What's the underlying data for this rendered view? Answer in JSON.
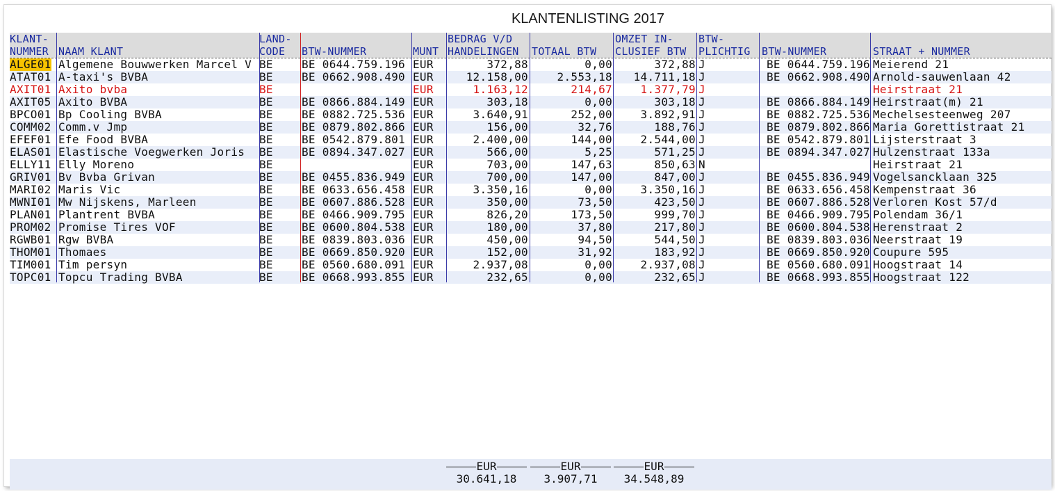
{
  "title": "KLANTENLISTING 2017",
  "headers": {
    "klantnummer": [
      "KLANT-",
      "NUMMER"
    ],
    "naam": [
      "",
      "NAAM KLANT"
    ],
    "landcode": [
      "LAND-",
      "CODE"
    ],
    "btw_nummer": [
      "",
      "BTW-NUMMER"
    ],
    "munt": [
      "",
      "MUNT"
    ],
    "bedrag": [
      "BEDRAG V/D",
      "HANDELINGEN"
    ],
    "totaal_btw": [
      "",
      "TOTAAL BTW"
    ],
    "omzet": [
      "OMZET IN-",
      "CLUSIEF BTW"
    ],
    "btw_plichtig": [
      "BTW-",
      "PLICHTIG"
    ],
    "btw_nummer2": [
      "",
      "BTW-NUMMER"
    ],
    "straat": [
      "",
      "STRAAT + NUMMER"
    ]
  },
  "rows": [
    {
      "nr": "ALGE01",
      "naam": "Algemene Bouwwerken Marcel V",
      "land": "BE",
      "btw": "BE 0644.759.196",
      "munt": "EUR",
      "bedrag": "372,88",
      "totbtw": "0,00",
      "omzet": "372,88",
      "plicht": "J",
      "btw2": "BE 0644.759.196",
      "straat": "Meierend 21"
    },
    {
      "nr": "ATAT01",
      "naam": "A-taxi's BVBA",
      "land": "BE",
      "btw": "BE 0662.908.490",
      "munt": "EUR",
      "bedrag": "12.158,00",
      "totbtw": "2.553,18",
      "omzet": "14.711,18",
      "plicht": "J",
      "btw2": "BE 0662.908.490",
      "straat": "Arnold-sauwenlaan 42"
    },
    {
      "nr": "AXIT01",
      "naam": "Axito bvba",
      "land": "BE",
      "btw": "",
      "munt": "EUR",
      "bedrag": "1.163,12",
      "totbtw": "214,67",
      "omzet": "1.377,79",
      "plicht": "J",
      "btw2": "",
      "straat": "Heirstraat 21",
      "red": true
    },
    {
      "nr": "AXIT05",
      "naam": "Axito BVBA",
      "land": "BE",
      "btw": "BE 0866.884.149",
      "munt": "EUR",
      "bedrag": "303,18",
      "totbtw": "0,00",
      "omzet": "303,18",
      "plicht": "J",
      "btw2": "BE 0866.884.149",
      "straat": "Heirstraat(m) 21"
    },
    {
      "nr": "BPCO01",
      "naam": "Bp Cooling BVBA",
      "land": "BE",
      "btw": "BE 0882.725.536",
      "munt": "EUR",
      "bedrag": "3.640,91",
      "totbtw": "252,00",
      "omzet": "3.892,91",
      "plicht": "J",
      "btw2": "BE 0882.725.536",
      "straat": "Mechelsesteenweg 207"
    },
    {
      "nr": "COMM02",
      "naam": "Comm.v Jmp",
      "land": "BE",
      "btw": "BE 0879.802.866",
      "munt": "EUR",
      "bedrag": "156,00",
      "totbtw": "32,76",
      "omzet": "188,76",
      "plicht": "J",
      "btw2": "BE 0879.802.866",
      "straat": "Maria Gorettistraat 21"
    },
    {
      "nr": "EFEF01",
      "naam": "Efe Food BVBA",
      "land": "BE",
      "btw": "BE 0542.879.801",
      "munt": "EUR",
      "bedrag": "2.400,00",
      "totbtw": "144,00",
      "omzet": "2.544,00",
      "plicht": "J",
      "btw2": "BE 0542.879.801",
      "straat": "Lijsterstraat 3"
    },
    {
      "nr": "ELAS01",
      "naam": "Elastische Voegwerken Joris",
      "land": "BE",
      "btw": "BE 0894.347.027",
      "munt": "EUR",
      "bedrag": "566,00",
      "totbtw": "5,25",
      "omzet": "571,25",
      "plicht": "J",
      "btw2": "BE 0894.347.027",
      "straat": "Hulzenstraat 133a"
    },
    {
      "nr": "ELLY11",
      "naam": "Elly Moreno",
      "land": "BE",
      "btw": "",
      "munt": "EUR",
      "bedrag": "703,00",
      "totbtw": "147,63",
      "omzet": "850,63",
      "plicht": "N",
      "btw2": "",
      "straat": "Heirstraat 21"
    },
    {
      "nr": "GRIV01",
      "naam": "Bv Bvba Grivan",
      "land": "BE",
      "btw": "BE 0455.836.949",
      "munt": "EUR",
      "bedrag": "700,00",
      "totbtw": "147,00",
      "omzet": "847,00",
      "plicht": "J",
      "btw2": "BE 0455.836.949",
      "straat": "Vogelsancklaan 325"
    },
    {
      "nr": "MARI02",
      "naam": "Maris Vic",
      "land": "BE",
      "btw": "BE 0633.656.458",
      "munt": "EUR",
      "bedrag": "3.350,16",
      "totbtw": "0,00",
      "omzet": "3.350,16",
      "plicht": "J",
      "btw2": "BE 0633.656.458",
      "straat": "Kempenstraat 36"
    },
    {
      "nr": "MWNI01",
      "naam": "Mw Nijskens, Marleen",
      "land": "BE",
      "btw": "BE 0607.886.528",
      "munt": "EUR",
      "bedrag": "350,00",
      "totbtw": "73,50",
      "omzet": "423,50",
      "plicht": "J",
      "btw2": "BE 0607.886.528",
      "straat": "Verloren Kost 57/d"
    },
    {
      "nr": "PLAN01",
      "naam": "Plantrent BVBA",
      "land": "BE",
      "btw": "BE 0466.909.795",
      "munt": "EUR",
      "bedrag": "826,20",
      "totbtw": "173,50",
      "omzet": "999,70",
      "plicht": "J",
      "btw2": "BE 0466.909.795",
      "straat": "Polendam 36/1"
    },
    {
      "nr": "PROM02",
      "naam": "Promise Tires VOF",
      "land": "BE",
      "btw": "BE 0600.804.538",
      "munt": "EUR",
      "bedrag": "180,00",
      "totbtw": "37,80",
      "omzet": "217,80",
      "plicht": "J",
      "btw2": "BE 0600.804.538",
      "straat": "Herenstraat 2"
    },
    {
      "nr": "RGWB01",
      "naam": "Rgw BVBA",
      "land": "BE",
      "btw": "BE 0839.803.036",
      "munt": "EUR",
      "bedrag": "450,00",
      "totbtw": "94,50",
      "omzet": "544,50",
      "plicht": "J",
      "btw2": "BE 0839.803.036",
      "straat": "Neerstraat 19"
    },
    {
      "nr": "THOM01",
      "naam": "Thomaes",
      "land": "BE",
      "btw": "BE 0669.850.920",
      "munt": "EUR",
      "bedrag": "152,00",
      "totbtw": "31,92",
      "omzet": "183,92",
      "plicht": "J",
      "btw2": "BE 0669.850.920",
      "straat": "Coupure 595"
    },
    {
      "nr": "TIM001",
      "naam": "Tim persyn",
      "land": "BE",
      "btw": "BE 0560.680.091",
      "munt": "EUR",
      "bedrag": "2.937,08",
      "totbtw": "0,00",
      "omzet": "2.937,08",
      "plicht": "J",
      "btw2": "BE 0560.680.091",
      "straat": "Hoogstraat 14"
    },
    {
      "nr": "TOPC01",
      "naam": "Topcu Trading BVBA",
      "land": "BE",
      "btw": "BE 0668.993.855",
      "munt": "EUR",
      "bedrag": "232,65",
      "totbtw": "0,00",
      "omzet": "232,65",
      "plicht": "J",
      "btw2": "BE 0668.993.855",
      "straat": "Hoogstraat 122"
    }
  ],
  "totals": {
    "bedrag": {
      "currency": "EUR",
      "value": "30.641,18"
    },
    "totaal_btw": {
      "currency": "EUR",
      "value": "3.907,71"
    },
    "omzet": {
      "currency": "EUR",
      "value": "34.548,89"
    }
  },
  "colors": {
    "header_text": "#1a2aa0",
    "red_row": "#d51414",
    "selection": "#f7c300",
    "alt_row": "#e9eef9",
    "col_line": "#3a3aa8",
    "land_line": "#d02020"
  }
}
